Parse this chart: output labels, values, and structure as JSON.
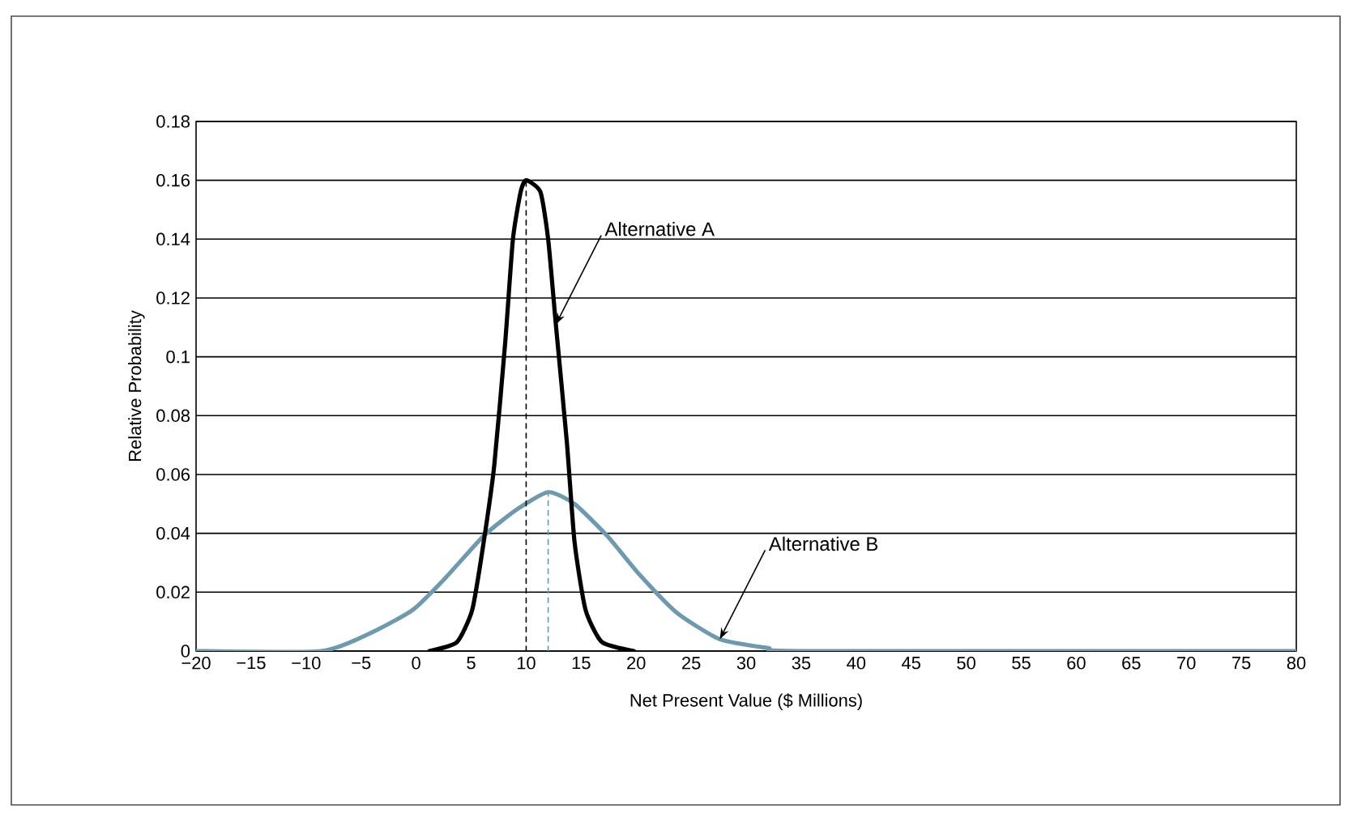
{
  "chart_data": {
    "type": "line",
    "xlabel": "Net Present Value ($ Millions)",
    "ylabel": "Relative Probability",
    "xlim": [
      -20,
      80
    ],
    "ylim": [
      0,
      0.18
    ],
    "xticks": [
      {
        "value": -20,
        "label": "−20"
      },
      {
        "value": -15,
        "label": "−15"
      },
      {
        "value": -10,
        "label": "−10"
      },
      {
        "value": -5,
        "label": "−5"
      },
      0,
      5,
      10,
      15,
      20,
      25,
      30,
      35,
      40,
      45,
      50,
      55,
      60,
      65,
      70,
      75,
      80
    ],
    "yticks": [
      0,
      0.02,
      0.04,
      0.06,
      0.08,
      0.1,
      0.12,
      0.14,
      0.16,
      0.18
    ],
    "grid": "y",
    "series": [
      {
        "color": "#6f9aae",
        "line_style": "solid",
        "x": [
          -20,
          -8.6,
          -4.2,
          -0.3,
          2.7,
          6.1,
          9.1,
          12,
          14.4,
          17.4,
          20.3,
          23.7,
          27.6,
          32,
          35,
          80
        ],
        "values": [
          0,
          0,
          0.006,
          0.014,
          0.025,
          0.039,
          0.048,
          0.054,
          0.05,
          0.039,
          0.026,
          0.013,
          0.004,
          0.001,
          0,
          0
        ]
      },
      {
        "color": "#000000",
        "line_style": "solid",
        "x": [
          1.2,
          3.7,
          5.1,
          6.1,
          7.1,
          8.1,
          8.8,
          9.5,
          10,
          11.3,
          12,
          12.7,
          13.7,
          14.4,
          15.4,
          16.9,
          19.8
        ],
        "values": [
          0,
          0.003,
          0.014,
          0.036,
          0.063,
          0.105,
          0.14,
          0.156,
          0.16,
          0.156,
          0.14,
          0.111,
          0.071,
          0.037,
          0.014,
          0.003,
          0
        ]
      },
      {
        "color": "#000000",
        "line_style": "dashed",
        "x": [
          10,
          10
        ],
        "values": [
          0,
          0.16
        ]
      },
      {
        "color": "#6f9aae",
        "line_style": "dashed",
        "x": [
          12,
          12
        ],
        "values": [
          0,
          0.054
        ]
      }
    ],
    "annotations": [
      {
        "text": "Alternative A",
        "x": 12.7,
        "y": 0.111
      },
      {
        "text": "Alternative B",
        "x": 27.6,
        "y": 0.004
      }
    ]
  }
}
